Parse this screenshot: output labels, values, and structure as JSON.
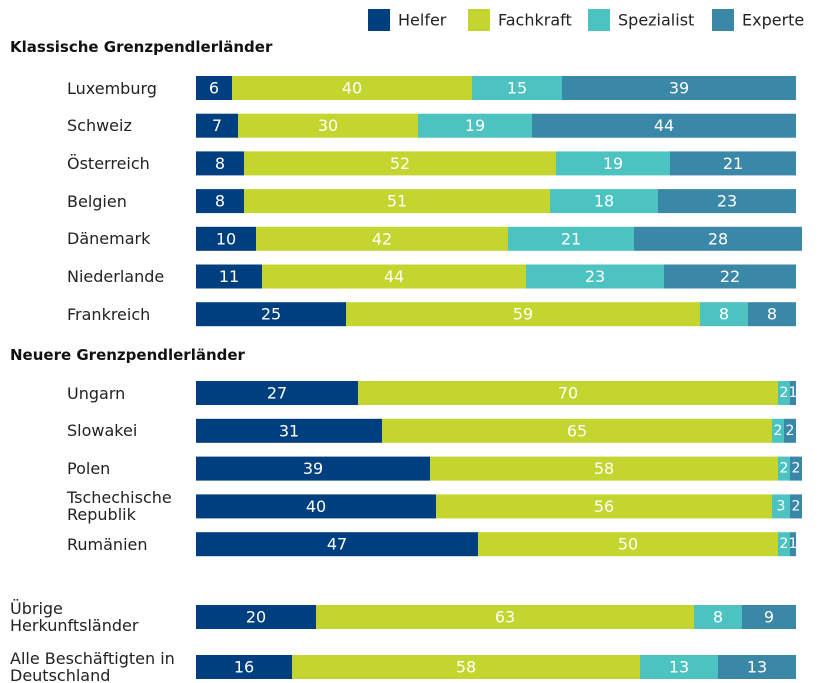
{
  "chart_data": {
    "type": "bar",
    "orientation": "horizontal",
    "stacked": true,
    "xlim": [
      0,
      100
    ],
    "series": [
      {
        "name": "Helfer",
        "color": "#003f7f"
      },
      {
        "name": "Fachkraft",
        "color": "#c3d52e"
      },
      {
        "name": "Spezialist",
        "color": "#4cc3c0"
      },
      {
        "name": "Experte",
        "color": "#3a87a8"
      }
    ],
    "groups": [
      {
        "title": "Klassische Grenzpendlerländer",
        "categories": [
          "Luxemburg",
          "Schweiz",
          "Österreich",
          "Belgien",
          "Dänemark",
          "Niederlande",
          "Frankreich"
        ],
        "series": [
          {
            "values": [
              6,
              7,
              8,
              8,
              10,
              11,
              25
            ]
          },
          {
            "values": [
              40,
              30,
              52,
              51,
              42,
              44,
              59
            ]
          },
          {
            "values": [
              15,
              19,
              19,
              18,
              21,
              23,
              8
            ]
          },
          {
            "values": [
              39,
              44,
              21,
              23,
              28,
              22,
              8
            ]
          }
        ]
      },
      {
        "title": "Neuere Grenzpendlerländer",
        "categories": [
          "Ungarn",
          "Slowakei",
          "Polen",
          "Tschechische Republik",
          "Rumänien"
        ],
        "series": [
          {
            "values": [
              27,
              31,
              39,
              40,
              47
            ]
          },
          {
            "values": [
              70,
              65,
              58,
              56,
              50
            ]
          },
          {
            "values": [
              2,
              2,
              2,
              3,
              2
            ]
          },
          {
            "values": [
              1,
              2,
              2,
              2,
              1
            ]
          }
        ]
      },
      {
        "categories": [
          "Übrige Herkunftsländer",
          "Alle Beschäftigten in Deutschland"
        ],
        "series": [
          {
            "values": [
              20,
              16
            ]
          },
          {
            "values": [
              63,
              58
            ]
          },
          {
            "values": [
              8,
              13
            ]
          },
          {
            "values": [
              9,
              13
            ]
          }
        ]
      }
    ]
  }
}
